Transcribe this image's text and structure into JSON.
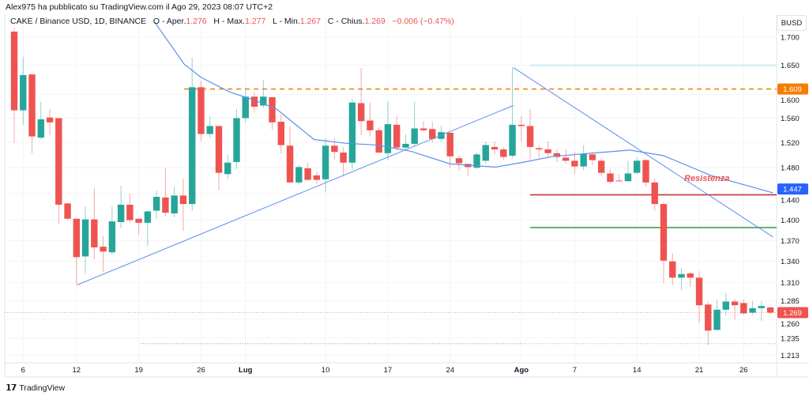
{
  "header": {
    "published": "Alex975 ha pubblicato su TradingView.com il Ago 29, 2023 08:07 UTC+2",
    "symbol": "CAKE / Binance USD, 1D, BINANCE",
    "open_label": "O - Aper.",
    "open": "1.276",
    "high_label": "H - Max.",
    "high": "1.277",
    "low_label": "L - Min.",
    "low": "1.267",
    "close_label": "C - Chius.",
    "close": "1.269",
    "change": "−0.006 (−0.47%)"
  },
  "currency": "BUSD",
  "footer": {
    "brand": "TradingView",
    "logo": "17"
  },
  "colors": {
    "up": "#26a69a",
    "down": "#ef5350",
    "ma": "#5b8ff0",
    "orange": "#f57c00",
    "resistance": "#c62828",
    "support": "#2e9e36",
    "blue_tag": "#2962ff"
  },
  "chart_data": {
    "type": "candlestick",
    "title": "CAKE / Binance USD, 1D, BINANCE",
    "y_ticks": [
      "1.700",
      "1.650",
      "1.600",
      "1.560",
      "1.520",
      "1.480",
      "1.440",
      "1.400",
      "1.370",
      "1.340",
      "1.310",
      "1.285",
      "1.260",
      "1.235",
      "1.213"
    ],
    "ylim": [
      1.213,
      1.72
    ],
    "x_labels": [
      {
        "label": "6",
        "day": 1
      },
      {
        "label": "12",
        "day": 7
      },
      {
        "label": "19",
        "day": 14
      },
      {
        "label": "26",
        "day": 21
      },
      {
        "label": "Lug",
        "day": 26,
        "bold": true
      },
      {
        "label": "10",
        "day": 35
      },
      {
        "label": "17",
        "day": 42
      },
      {
        "label": "24",
        "day": 49
      },
      {
        "label": "Ago",
        "day": 57,
        "bold": true
      },
      {
        "label": "7",
        "day": 63
      },
      {
        "label": "14",
        "day": 70
      },
      {
        "label": "21",
        "day": 77
      },
      {
        "label": "26",
        "day": 82
      }
    ],
    "ohlc": [
      [
        1.71,
        1.717,
        1.52,
        1.573
      ],
      [
        1.573,
        1.665,
        1.549,
        1.633
      ],
      [
        1.634,
        1.636,
        1.503,
        1.53
      ],
      [
        1.528,
        1.587,
        1.525,
        1.558
      ],
      [
        1.561,
        1.575,
        1.532,
        1.553
      ],
      [
        1.56,
        1.56,
        1.394,
        1.423
      ],
      [
        1.425,
        1.425,
        1.4,
        1.402
      ],
      [
        1.402,
        1.402,
        1.307,
        1.346
      ],
      [
        1.347,
        1.42,
        1.323,
        1.401
      ],
      [
        1.401,
        1.449,
        1.343,
        1.36
      ],
      [
        1.361,
        1.376,
        1.325,
        1.354
      ],
      [
        1.353,
        1.42,
        1.35,
        1.398
      ],
      [
        1.397,
        1.452,
        1.388,
        1.423
      ],
      [
        1.423,
        1.44,
        1.396,
        1.4
      ],
      [
        1.402,
        1.402,
        1.378,
        1.396
      ],
      [
        1.396,
        1.413,
        1.362,
        1.413
      ],
      [
        1.414,
        1.445,
        1.402,
        1.435
      ],
      [
        1.434,
        1.48,
        1.405,
        1.411
      ],
      [
        1.41,
        1.451,
        1.404,
        1.437
      ],
      [
        1.437,
        1.463,
        1.384,
        1.424
      ],
      [
        1.424,
        1.663,
        1.414,
        1.612
      ],
      [
        1.612,
        1.623,
        1.522,
        1.534
      ],
      [
        1.534,
        1.563,
        1.528,
        1.547
      ],
      [
        1.547,
        1.547,
        1.445,
        1.472
      ],
      [
        1.47,
        1.501,
        1.462,
        1.488
      ],
      [
        1.489,
        1.575,
        1.478,
        1.56
      ],
      [
        1.56,
        1.612,
        1.552,
        1.596
      ],
      [
        1.596,
        1.603,
        1.57,
        1.579
      ],
      [
        1.581,
        1.625,
        1.577,
        1.596
      ],
      [
        1.595,
        1.595,
        1.541,
        1.553
      ],
      [
        1.554,
        1.566,
        1.502,
        1.516
      ],
      [
        1.515,
        1.547,
        1.457,
        1.457
      ],
      [
        1.457,
        1.484,
        1.454,
        1.481
      ],
      [
        1.479,
        1.488,
        1.46,
        1.461
      ],
      [
        1.468,
        1.474,
        1.455,
        1.461
      ],
      [
        1.462,
        1.527,
        1.442,
        1.515
      ],
      [
        1.515,
        1.527,
        1.493,
        1.505
      ],
      [
        1.504,
        1.513,
        1.466,
        1.488
      ],
      [
        1.488,
        1.592,
        1.477,
        1.586
      ],
      [
        1.585,
        1.645,
        1.532,
        1.555
      ],
      [
        1.556,
        1.586,
        1.53,
        1.54
      ],
      [
        1.54,
        1.545,
        1.503,
        1.504
      ],
      [
        1.503,
        1.589,
        1.492,
        1.55
      ],
      [
        1.549,
        1.563,
        1.507,
        1.512
      ],
      [
        1.512,
        1.533,
        1.509,
        1.518
      ],
      [
        1.518,
        1.587,
        1.514,
        1.543
      ],
      [
        1.543,
        1.555,
        1.538,
        1.54
      ],
      [
        1.542,
        1.554,
        1.52,
        1.526
      ],
      [
        1.526,
        1.547,
        1.521,
        1.537
      ],
      [
        1.536,
        1.536,
        1.48,
        1.498
      ],
      [
        1.495,
        1.499,
        1.475,
        1.487
      ],
      [
        1.486,
        1.486,
        1.467,
        1.481
      ],
      [
        1.48,
        1.504,
        1.478,
        1.501
      ],
      [
        1.491,
        1.522,
        1.486,
        1.516
      ],
      [
        1.513,
        1.522,
        1.501,
        1.509
      ],
      [
        1.509,
        1.513,
        1.492,
        1.497
      ],
      [
        1.499,
        1.646,
        1.495,
        1.549
      ],
      [
        1.549,
        1.563,
        1.522,
        1.547
      ],
      [
        1.547,
        1.575,
        1.493,
        1.513
      ],
      [
        1.511,
        1.516,
        1.495,
        1.509
      ],
      [
        1.509,
        1.522,
        1.497,
        1.503
      ],
      [
        1.503,
        1.509,
        1.489,
        1.497
      ],
      [
        1.496,
        1.509,
        1.486,
        1.491
      ],
      [
        1.491,
        1.505,
        1.47,
        1.482
      ],
      [
        1.482,
        1.516,
        1.476,
        1.502
      ],
      [
        1.501,
        1.505,
        1.484,
        1.492
      ],
      [
        1.491,
        1.495,
        1.467,
        1.472
      ],
      [
        1.471,
        1.478,
        1.455,
        1.458
      ],
      [
        1.46,
        1.47,
        1.459,
        1.459
      ],
      [
        1.459,
        1.491,
        1.458,
        1.471
      ],
      [
        1.472,
        1.496,
        1.47,
        1.491
      ],
      [
        1.492,
        1.494,
        1.451,
        1.457
      ],
      [
        1.457,
        1.463,
        1.414,
        1.424
      ],
      [
        1.424,
        1.427,
        1.309,
        1.341
      ],
      [
        1.34,
        1.352,
        1.307,
        1.317
      ],
      [
        1.317,
        1.33,
        1.3,
        1.322
      ],
      [
        1.323,
        1.325,
        1.304,
        1.317
      ],
      [
        1.317,
        1.326,
        1.255,
        1.279
      ],
      [
        1.28,
        1.283,
        1.226,
        1.245
      ],
      [
        1.246,
        1.286,
        1.245,
        1.273
      ],
      [
        1.273,
        1.296,
        1.265,
        1.284
      ],
      [
        1.284,
        1.287,
        1.26,
        1.279
      ],
      [
        1.282,
        1.287,
        1.266,
        1.268
      ],
      [
        1.269,
        1.285,
        1.266,
        1.275
      ],
      [
        1.275,
        1.285,
        1.258,
        1.278
      ],
      [
        1.276,
        1.277,
        1.267,
        1.269
      ]
    ],
    "moving_average": [
      [
        15.8,
        1.727
      ],
      [
        19.1,
        1.652
      ],
      [
        21.0,
        1.629
      ],
      [
        24.2,
        1.604
      ],
      [
        27.0,
        1.59
      ],
      [
        29.5,
        1.575
      ],
      [
        33.7,
        1.525
      ],
      [
        37.2,
        1.519
      ],
      [
        40.8,
        1.516
      ],
      [
        44.6,
        1.506
      ],
      [
        49.0,
        1.486
      ],
      [
        54.1,
        1.481
      ],
      [
        57.0,
        1.488
      ],
      [
        60.6,
        1.498
      ],
      [
        69.2,
        1.508
      ],
      [
        73.0,
        1.499
      ],
      [
        78.3,
        1.468
      ],
      [
        85.3,
        1.441
      ]
    ],
    "ma_last": "1.447",
    "drawings": {
      "ascending_trendline": [
        [
          7.1,
          1.307
        ],
        [
          56.1,
          1.581
        ]
      ],
      "descending_trendline": [
        [
          56.1,
          1.646
        ],
        [
          85.3,
          1.375
        ]
      ],
      "orange_level": {
        "price": 1.609,
        "from_day": 19.1,
        "tag": "1.609"
      },
      "cyan_level": {
        "price": 1.65,
        "from_day": 58
      },
      "resistance_level": {
        "price": 1.438,
        "from_day": 58
      },
      "support_level": {
        "price": 1.389,
        "from_day": 58
      },
      "low_level": {
        "price": 1.228,
        "from_day": 14.2
      },
      "resistance_label": "Resistenza"
    },
    "last_price": "1.269"
  }
}
